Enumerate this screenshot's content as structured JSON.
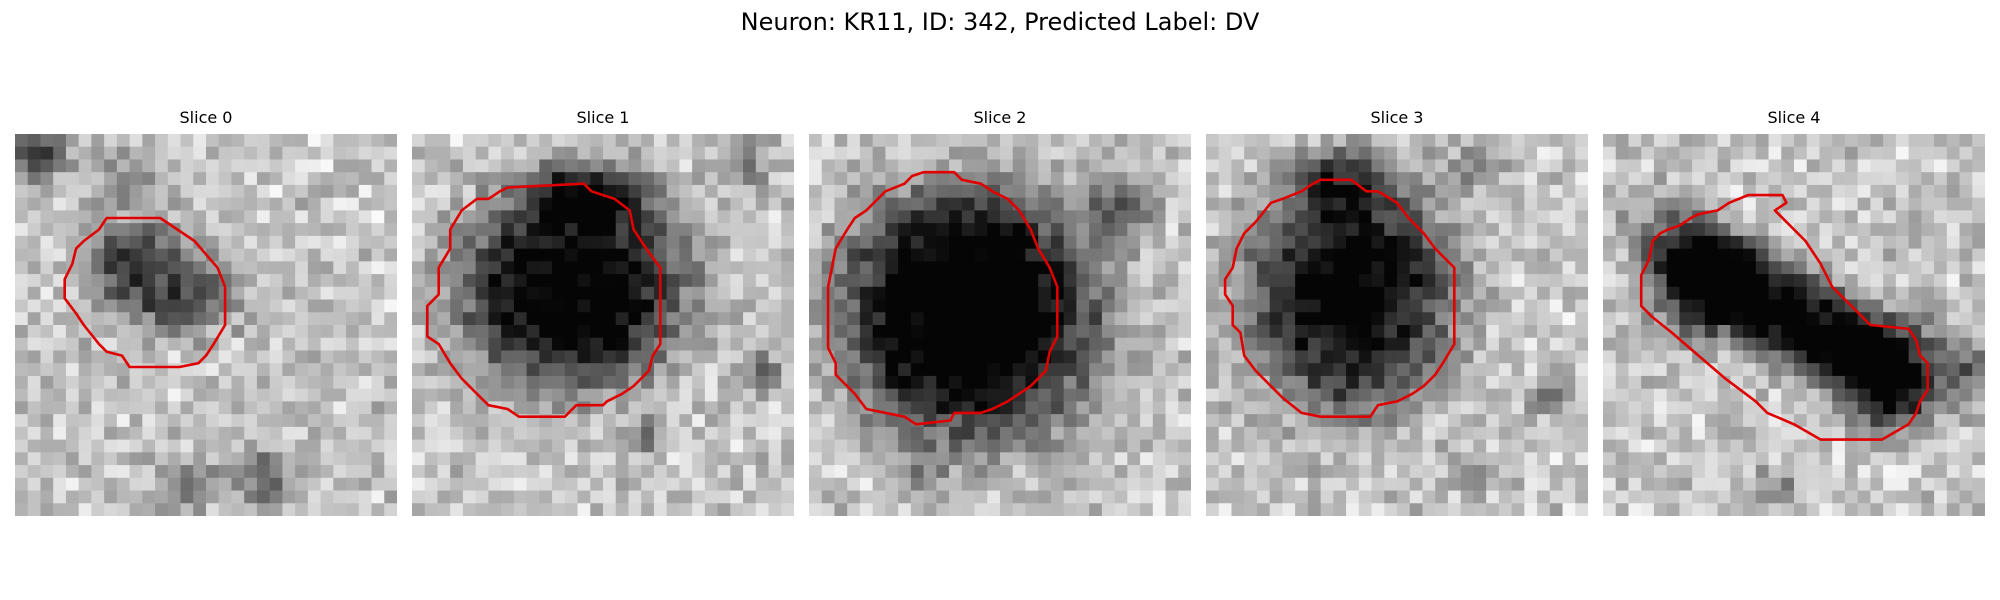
{
  "figure": {
    "title": "Neuron: KR11, ID: 342, Predicted Label: DV"
  },
  "panels": [
    {
      "title": "Slice 0",
      "image": "grayscale-microscopy-slice",
      "contour_color": "#e00000"
    },
    {
      "title": "Slice 1",
      "image": "grayscale-microscopy-slice",
      "contour_color": "#e00000"
    },
    {
      "title": "Slice 2",
      "image": "grayscale-microscopy-slice",
      "contour_color": "#e00000"
    },
    {
      "title": "Slice 3",
      "image": "grayscale-microscopy-slice",
      "contour_color": "#e00000"
    },
    {
      "title": "Slice 4",
      "image": "grayscale-microscopy-slice",
      "contour_color": "#e00000"
    }
  ]
}
